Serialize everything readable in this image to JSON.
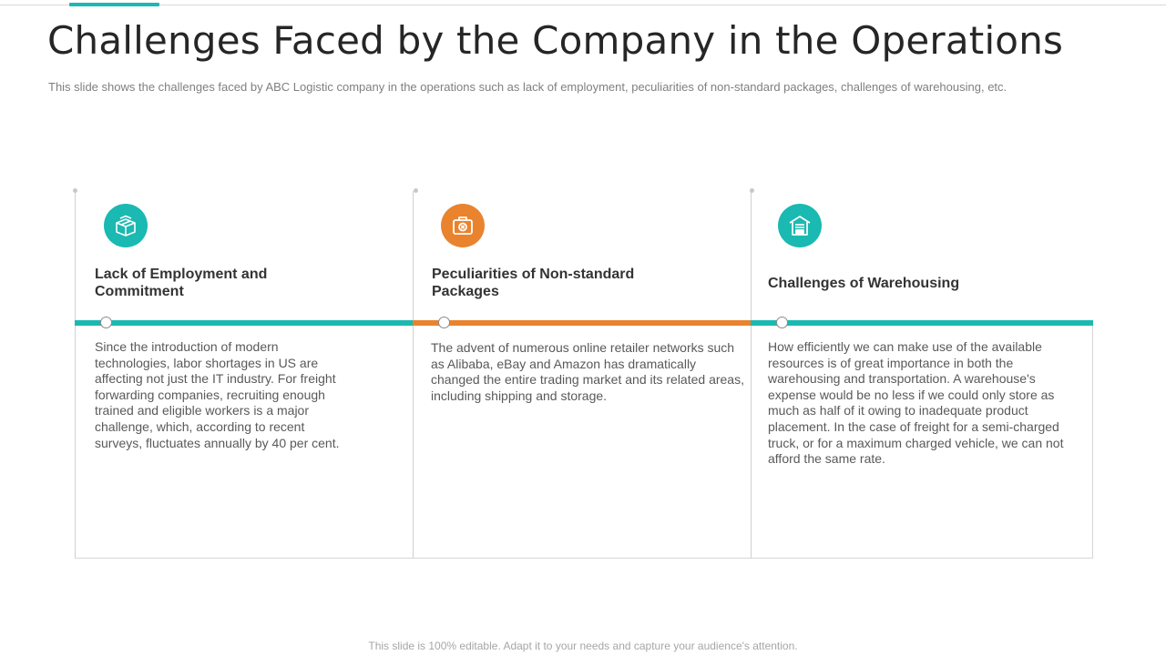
{
  "page": {
    "title": "Challenges Faced by the Company in the Operations",
    "subtitle": "This slide shows the challenges faced by ABC Logistic company in the operations such as lack of employment, peculiarities of non-standard packages, challenges of warehousing, etc.",
    "footer": "This slide is 100% editable. Adapt it to your needs and capture your audience's attention."
  },
  "colors": {
    "teal": "#1ab9b1",
    "orange": "#e9832e"
  },
  "panels": [
    {
      "icon": "boxes-icon",
      "color": "teal",
      "heading": "Lack of Employment and Commitment",
      "body": "Since the introduction of modern technologies, labor shortages in US are affecting not just the IT industry. For freight forwarding companies, recruiting enough trained and eligible workers is a major challenge, which, according to recent surveys, fluctuates annually by 40 per cent."
    },
    {
      "icon": "package-icon",
      "color": "orange",
      "heading": "Peculiarities of Non-standard Packages",
      "body": "The advent of numerous online retailer networks such as Alibaba,  eBay and Amazon has dramatically changed the entire trading market and its related areas, including shipping and storage."
    },
    {
      "icon": "warehouse-icon",
      "color": "teal",
      "heading": "Challenges of Warehousing",
      "body": "How efficiently we can make use of the available resources is of great importance in both the warehousing and transportation. A warehouse's expense would be no less if we could only store as much as half of it owing to inadequate product placement. In the case of freight for a semi-charged truck, or for a maximum charged vehicle, we can not afford the same rate."
    }
  ]
}
